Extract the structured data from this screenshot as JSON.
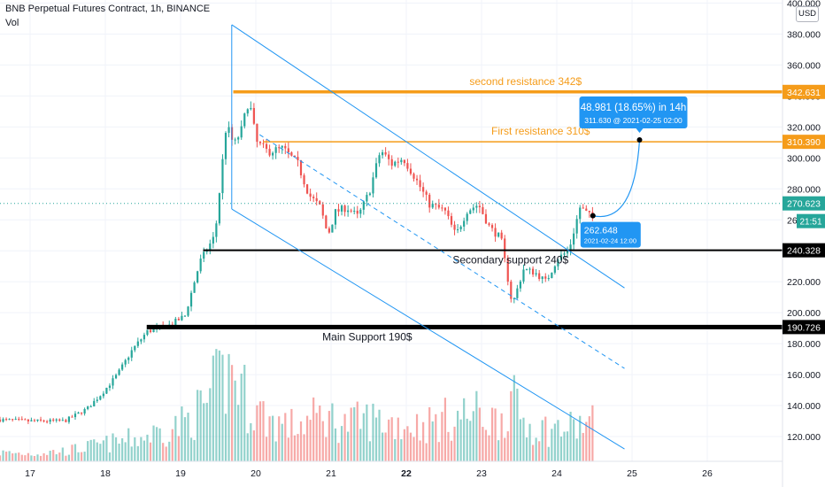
{
  "header": {
    "title": "BNB Perpetual Futures Contract, 1h, BINANCE",
    "indicator": "Vol",
    "currency_button": "USD"
  },
  "chart_data": {
    "type": "candlestick",
    "y_axis": {
      "ticks": [
        400,
        380,
        360,
        340,
        320,
        300,
        280,
        260,
        240,
        220,
        200,
        180,
        160,
        140,
        120
      ],
      "tick_labels": [
        "400.000",
        "380.000",
        "360.000",
        "340.000",
        "320.000",
        "300.000",
        "280.000",
        "260.000",
        "240.000",
        "220.000",
        "200.000",
        "180.000",
        "160.000",
        "140.000",
        "120.000"
      ],
      "range": [
        104,
        402
      ]
    },
    "x_axis": {
      "ticks": [
        17,
        18,
        19,
        20,
        21,
        22,
        23,
        24,
        25,
        26
      ],
      "tick_labels": [
        "17",
        "18",
        "19",
        "20",
        "21",
        "22",
        "23",
        "24",
        "25",
        "26"
      ],
      "bold_labels": [
        "22"
      ],
      "range": [
        16.6,
        27
      ]
    },
    "price_key_points": [
      [
        16.6,
        131
      ],
      [
        17.0,
        130
      ],
      [
        17.5,
        130
      ],
      [
        17.8,
        138
      ],
      [
        18.0,
        148
      ],
      [
        18.2,
        160
      ],
      [
        18.4,
        176
      ],
      [
        18.6,
        188
      ],
      [
        18.9,
        192
      ],
      [
        19.1,
        198
      ],
      [
        19.3,
        233
      ],
      [
        19.5,
        250
      ],
      [
        19.65,
        322
      ],
      [
        19.75,
        308
      ],
      [
        19.85,
        318
      ],
      [
        19.95,
        338
      ],
      [
        20.05,
        310
      ],
      [
        20.2,
        304
      ],
      [
        20.4,
        306
      ],
      [
        20.6,
        296
      ],
      [
        20.75,
        276
      ],
      [
        20.9,
        268
      ],
      [
        21.0,
        250
      ],
      [
        21.1,
        265
      ],
      [
        21.25,
        268
      ],
      [
        21.4,
        262
      ],
      [
        21.55,
        278
      ],
      [
        21.7,
        305
      ],
      [
        21.85,
        296
      ],
      [
        22.0,
        300
      ],
      [
        22.15,
        288
      ],
      [
        22.35,
        270
      ],
      [
        22.55,
        266
      ],
      [
        22.7,
        250
      ],
      [
        22.85,
        266
      ],
      [
        23.0,
        270
      ],
      [
        23.15,
        255
      ],
      [
        23.3,
        248
      ],
      [
        23.45,
        205
      ],
      [
        23.6,
        228
      ],
      [
        23.75,
        226
      ],
      [
        23.9,
        220
      ],
      [
        24.05,
        235
      ],
      [
        24.2,
        240
      ],
      [
        24.35,
        268
      ],
      [
        24.48,
        262.6
      ]
    ],
    "volume_key_points": [
      [
        16.6,
        0.09
      ],
      [
        17.0,
        0.08
      ],
      [
        17.5,
        0.11
      ],
      [
        18.0,
        0.18
      ],
      [
        18.5,
        0.25
      ],
      [
        19.0,
        0.38
      ],
      [
        19.3,
        0.55
      ],
      [
        19.5,
        0.8
      ],
      [
        19.7,
        0.95
      ],
      [
        19.9,
        0.6
      ],
      [
        20.2,
        0.42
      ],
      [
        20.5,
        0.36
      ],
      [
        20.9,
        0.48
      ],
      [
        21.2,
        0.38
      ],
      [
        21.5,
        0.44
      ],
      [
        21.8,
        0.4
      ],
      [
        22.2,
        0.37
      ],
      [
        22.6,
        0.45
      ],
      [
        22.9,
        0.5
      ],
      [
        23.2,
        0.42
      ],
      [
        23.4,
        0.62
      ],
      [
        23.6,
        0.38
      ],
      [
        23.9,
        0.33
      ],
      [
        24.2,
        0.35
      ],
      [
        24.45,
        0.4
      ]
    ],
    "horizontal_levels": [
      {
        "label": "second resistance 342$",
        "price": 342.631,
        "tag": "342.631",
        "start_x": 19.7,
        "color": "#f59c1a",
        "weight": "thick"
      },
      {
        "label": "First resistance 310$",
        "price": 310.39,
        "tag": "310.390",
        "start_x": 20.1,
        "color": "#f59c1a",
        "weight": "thin"
      },
      {
        "label": "Secondary support 240$",
        "price": 240.328,
        "tag": "240.328",
        "start_x": 19.3,
        "color": "#000000",
        "weight": "medium"
      },
      {
        "label": "Main Support 190$",
        "price": 190.726,
        "tag": "190.726",
        "start_x": 18.55,
        "color": "#000000",
        "weight": "heavy"
      }
    ],
    "channel": {
      "color": "#2196f3",
      "upper": [
        [
          19.68,
          386
        ],
        [
          24.9,
          216
        ]
      ],
      "lower": [
        [
          19.68,
          267
        ],
        [
          24.9,
          112
        ]
      ],
      "middle_dashed": [
        [
          20.05,
          315
        ],
        [
          24.9,
          164
        ]
      ]
    },
    "last_price": {
      "value": 270.623,
      "tag": "270.623",
      "countdown": "21:51",
      "color": "#26a69a"
    },
    "projection": {
      "start": {
        "x": 24.48,
        "price": 262.648,
        "label": "262.648",
        "date": "2021-02-24 12:00"
      },
      "end": {
        "x": 25.1,
        "price": 311.63
      },
      "label_main": "48.981 (18.65%) in 14h",
      "label_sub": "311.630 @ 2021-02-25  02:00",
      "color": "#2196f3"
    },
    "colors": {
      "up": "#26a69a",
      "down": "#ef5350"
    }
  }
}
